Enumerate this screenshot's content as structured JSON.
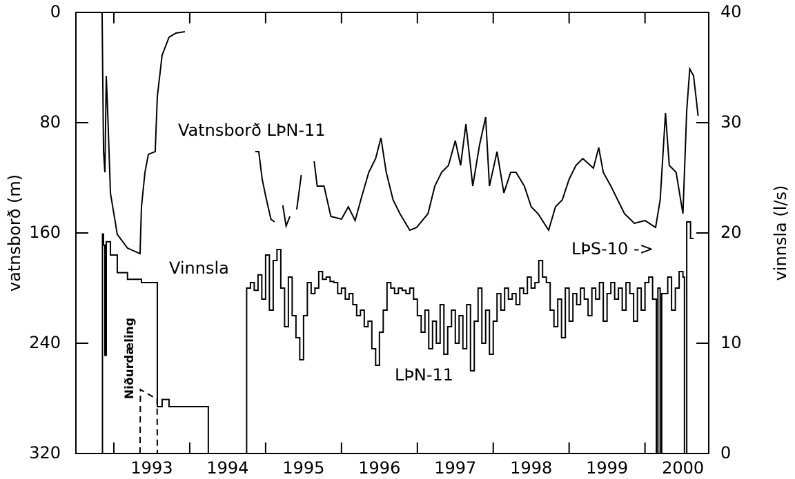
{
  "chart_data": {
    "type": "line",
    "ylabel": "vatnsborð (m)",
    "y2label": "vinnsla (l/s)",
    "xlim": [
      1992.5,
      2000.84
    ],
    "xticks": [
      1993,
      1994,
      1995,
      1996,
      1997,
      1998,
      1999,
      2000
    ],
    "ylim": [
      320,
      0
    ],
    "yticks": [
      0,
      80,
      160,
      240,
      320
    ],
    "y2lim": [
      0,
      40
    ],
    "y2ticks": [
      0,
      10,
      20,
      30,
      40
    ],
    "annotations": [
      "LÞN-11",
      "LÞS-10 ->"
    ],
    "series": [
      {
        "name": "Vatnsborð LÞN-11",
        "color": "#000000",
        "axis": "y",
        "step": false,
        "dashed": false,
        "x": [
          1992.845,
          1992.864,
          1992.882,
          1992.9,
          1992.918,
          1992.955,
          1993.045,
          1993.18,
          1993.345,
          1993.364,
          1993.41,
          1993.455,
          1993.545,
          1993.573,
          1993.636,
          1993.727,
          1993.818,
          1993.936,
          null,
          1994.864,
          1994.91,
          1994.955,
          1995.0,
          1995.07,
          1995.118,
          null,
          1995.227,
          1995.27,
          1995.32,
          null,
          1995.41,
          1995.47,
          null,
          1995.64,
          1995.68,
          1995.77,
          1995.86,
          1996.0,
          1996.09,
          1996.18,
          1996.27,
          1996.36,
          1996.45,
          1996.52,
          1996.59,
          1996.68,
          1996.77,
          1996.9,
          1996.99,
          1997.14,
          1997.23,
          1997.32,
          1997.41,
          1997.5,
          1997.57,
          1997.64,
          1997.73,
          1997.82,
          1997.9,
          1997.95,
          1998.05,
          1998.14,
          1998.23,
          1998.3,
          1998.41,
          1998.5,
          1998.59,
          1998.73,
          1998.82,
          1998.91,
          1999.0,
          1999.09,
          1999.18,
          1999.32,
          1999.39,
          1999.45,
          1999.55,
          1999.64,
          1999.73,
          1999.86,
          2000.0,
          2000.14,
          2000.2,
          2000.27,
          2000.32,
          2000.41,
          2000.5,
          2000.55,
          2000.59,
          2000.64,
          2000.7
        ],
        "values": [
          0,
          101,
          116,
          46,
          71,
          131,
          161,
          171,
          175,
          141,
          116,
          103,
          101,
          61,
          31,
          18,
          15,
          14,
          null,
          101,
          101,
          121,
          133,
          150,
          152,
          null,
          140,
          155,
          148,
          null,
          143,
          118,
          null,
          108,
          126,
          126,
          148,
          150,
          141,
          151,
          133,
          116,
          106,
          91,
          116,
          136,
          146,
          158,
          156,
          146,
          126,
          116,
          111,
          93,
          111,
          81,
          126,
          96,
          76,
          126,
          101,
          131,
          116,
          116,
          126,
          141,
          146,
          158,
          141,
          136,
          121,
          111,
          106,
          113,
          98,
          116,
          126,
          136,
          146,
          153,
          151,
          156,
          136,
          73,
          111,
          116,
          146,
          71,
          41,
          46,
          75
        ]
      },
      {
        "name": "Vinnsla",
        "color": "#000000",
        "axis": "y2",
        "step": true,
        "dashed": false,
        "x": [
          1992.845,
          1992.85,
          1992.864,
          1992.882,
          1992.9,
          1992.955,
          1993.045,
          1993.18,
          1993.364,
          1993.545,
          1993.573,
          1993.636,
          1993.727,
          1993.864,
          1994.045,
          1994.227,
          1994.245,
          null,
          1994.745,
          1994.75,
          1994.8,
          1994.85,
          1994.9,
          1994.95,
          1995.0,
          1995.05,
          1995.1,
          1995.15,
          1995.2,
          1995.25,
          1995.3,
          1995.35,
          1995.4,
          1995.45,
          1995.5,
          1995.55,
          1995.6,
          1995.65,
          1995.7,
          1995.75,
          1995.8,
          1995.85,
          1995.9,
          1995.95,
          1996.0,
          1996.05,
          1996.1,
          1996.15,
          1996.2,
          1996.25,
          1996.3,
          1996.35,
          1996.4,
          1996.45,
          1996.5,
          1996.55,
          1996.6,
          1996.65,
          1996.7,
          1996.75,
          1996.8,
          1996.85,
          1996.9,
          1996.95,
          1997.0,
          1997.05,
          1997.1,
          1997.15,
          1997.2,
          1997.25,
          1997.3,
          1997.35,
          1997.4,
          1997.45,
          1997.5,
          1997.55,
          1997.6,
          1997.65,
          1997.7,
          1997.75,
          1997.8,
          1997.85,
          1997.9,
          1997.95,
          1998.0,
          1998.05,
          1998.1,
          1998.15,
          1998.2,
          1998.25,
          1998.3,
          1998.35,
          1998.4,
          1998.45,
          1998.5,
          1998.55,
          1998.6,
          1998.65,
          1998.7,
          1998.75,
          1998.8,
          1998.85,
          1998.9,
          1998.95,
          1999.0,
          1999.05,
          1999.1,
          1999.15,
          1999.2,
          1999.25,
          1999.3,
          1999.35,
          1999.4,
          1999.45,
          1999.5,
          1999.55,
          1999.6,
          1999.65,
          1999.7,
          1999.75,
          1999.8,
          1999.85,
          1999.9,
          1999.95,
          2000.0,
          2000.05,
          2000.1,
          2000.15,
          2000.17,
          2000.2,
          2000.22,
          2000.3,
          2000.35,
          2000.4,
          2000.45,
          2000.5,
          2000.52,
          2000.55,
          2000.6,
          2000.64
        ],
        "values": [
          0,
          19.9,
          18.9,
          8.9,
          19.2,
          18,
          16.4,
          15.8,
          15.5,
          15.5,
          4.25,
          4.9,
          4.25,
          4.25,
          4.25,
          4.25,
          0,
          null,
          0,
          15,
          15.5,
          14.8,
          16.2,
          14,
          18,
          13,
          17.5,
          18.5,
          15,
          11.5,
          16,
          12.5,
          10.5,
          8.5,
          12.5,
          15.5,
          14.5,
          15,
          16.5,
          15.8,
          16,
          15.6,
          15.5,
          14.5,
          15,
          14,
          14.5,
          13.5,
          12.5,
          13,
          11.5,
          12,
          9.5,
          8,
          11,
          13,
          15.5,
          15,
          14.5,
          15,
          14.8,
          14.5,
          15,
          14,
          12.5,
          11,
          13,
          9.5,
          12,
          10,
          13.5,
          9,
          11.5,
          13,
          10,
          12.5,
          9.5,
          13.5,
          7.5,
          12,
          15,
          10,
          13,
          9,
          12,
          14.5,
          13,
          15,
          14,
          14.5,
          13.5,
          15,
          14.5,
          16,
          15,
          15.5,
          17.5,
          16,
          15.5,
          13,
          11.5,
          14,
          10.5,
          15,
          12,
          14.5,
          13.5,
          15,
          14,
          12.5,
          15,
          14,
          15.5,
          12,
          14.5,
          15.5,
          14,
          15,
          13,
          15.5,
          14.5,
          12,
          15,
          13,
          15.5,
          16,
          14,
          0,
          15,
          0,
          14.5,
          16,
          13,
          15,
          16.5,
          16,
          0,
          21,
          19.5,
          19.5
        ]
      },
      {
        "name": "Niðurdæling",
        "color": "#000000",
        "axis": "y2",
        "step": false,
        "dashed": true,
        "x": [
          1993.345,
          1993.35,
          1993.5,
          1993.57,
          1993.573
        ],
        "values": [
          0,
          5.8,
          5.2,
          5,
          0
        ]
      }
    ]
  }
}
